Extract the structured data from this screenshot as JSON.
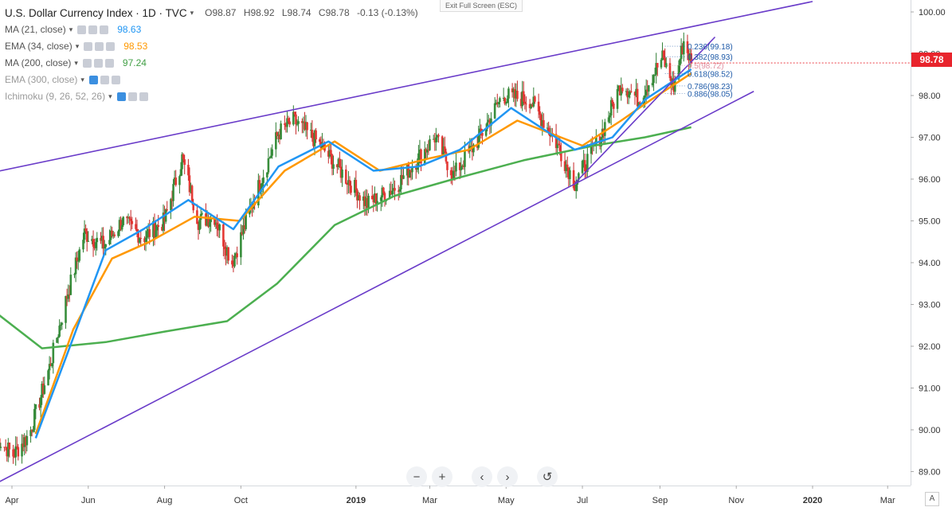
{
  "header": {
    "title": "U.S. Dollar Currency Index · 1D · TVC",
    "ohlc": {
      "open": "O98.87",
      "high": "H98.92",
      "low": "L98.74",
      "close": "C98.78",
      "change": "-0.13 (-0.13%)"
    }
  },
  "exit_fullscreen": "Exit Full Screen (ESC)",
  "indicators": [
    {
      "name": "MA (21, close)",
      "value": "98.63",
      "color": "#2196f3"
    },
    {
      "name": "EMA (34, close)",
      "value": "98.53",
      "color": "#ff9800"
    },
    {
      "name": "MA (200, close)",
      "value": "97.24",
      "color": "#4caf50"
    },
    {
      "name": "EMA (300, close)",
      "value": "",
      "color": "#999999"
    },
    {
      "name": "Ichimoku (9, 26, 52, 26)",
      "value": "",
      "color": "#999999"
    }
  ],
  "price_badge": "98.78",
  "colors": {
    "up": "#26a69a",
    "down": "#ef5350",
    "accent": "#6a3cc9",
    "badge": "#e8242c"
  },
  "controls": {
    "zoom_out": "−",
    "zoom_in": "+",
    "scroll_left": "‹",
    "scroll_right": "›",
    "reset": "↺"
  },
  "corner_label": "A",
  "chart_data": {
    "type": "candlestick",
    "title": "U.S. Dollar Currency Index",
    "y_ticks": [
      "100.00",
      "99.00",
      "98.00",
      "97.00",
      "96.00",
      "95.00",
      "94.00",
      "93.00",
      "92.00",
      "91.00",
      "90.00",
      "89.00"
    ],
    "y_range": [
      88.6,
      100.3
    ],
    "x_ticks": [
      "Apr",
      "Jun",
      "Aug",
      "Oct",
      "2019",
      "Mar",
      "May",
      "Jul",
      "Sep",
      "Nov",
      "2020",
      "Mar"
    ],
    "x_tick_dates": [
      "2018-04-01",
      "2018-06-01",
      "2018-08-01",
      "2018-10-01",
      "2019-01-01",
      "2019-03-01",
      "2019-05-01",
      "2019-07-01",
      "2019-09-01",
      "2019-11-01",
      "2020-01-01",
      "2020-03-01"
    ],
    "anchors": [
      {
        "date": "2018-03-20",
        "close": 89.8
      },
      {
        "date": "2018-04-02",
        "close": 89.4
      },
      {
        "date": "2018-04-15",
        "close": 89.9
      },
      {
        "date": "2018-05-01",
        "close": 91.5
      },
      {
        "date": "2018-05-15",
        "close": 93.2
      },
      {
        "date": "2018-05-29",
        "close": 94.7
      },
      {
        "date": "2018-06-14",
        "close": 94.4
      },
      {
        "date": "2018-06-28",
        "close": 95.0
      },
      {
        "date": "2018-07-15",
        "close": 94.6
      },
      {
        "date": "2018-08-01",
        "close": 95.0
      },
      {
        "date": "2018-08-15",
        "close": 96.5
      },
      {
        "date": "2018-08-28",
        "close": 95.0
      },
      {
        "date": "2018-09-10",
        "close": 95.1
      },
      {
        "date": "2018-09-24",
        "close": 94.0
      },
      {
        "date": "2018-10-10",
        "close": 95.4
      },
      {
        "date": "2018-10-31",
        "close": 97.1
      },
      {
        "date": "2018-11-12",
        "close": 97.4
      },
      {
        "date": "2018-12-01",
        "close": 96.9
      },
      {
        "date": "2019-01-10",
        "close": 95.4
      },
      {
        "date": "2019-02-01",
        "close": 95.8
      },
      {
        "date": "2019-03-05",
        "close": 97.0
      },
      {
        "date": "2019-03-20",
        "close": 96.1
      },
      {
        "date": "2019-04-10",
        "close": 97.0
      },
      {
        "date": "2019-04-28",
        "close": 98.0
      },
      {
        "date": "2019-05-20",
        "close": 97.9
      },
      {
        "date": "2019-06-08",
        "close": 97.0
      },
      {
        "date": "2019-06-25",
        "close": 95.9
      },
      {
        "date": "2019-07-15",
        "close": 97.0
      },
      {
        "date": "2019-08-01",
        "close": 98.3
      },
      {
        "date": "2019-08-15",
        "close": 97.9
      },
      {
        "date": "2019-09-03",
        "close": 98.9
      },
      {
        "date": "2019-09-12",
        "close": 98.2
      },
      {
        "date": "2019-09-20",
        "close": 99.3
      },
      {
        "date": "2019-09-26",
        "close": 98.8
      }
    ],
    "ma21": [
      {
        "date": "2018-04-20",
        "value": 89.8
      },
      {
        "date": "2018-05-15",
        "value": 91.8
      },
      {
        "date": "2018-06-15",
        "value": 94.3
      },
      {
        "date": "2018-07-15",
        "value": 94.8
      },
      {
        "date": "2018-08-20",
        "value": 95.5
      },
      {
        "date": "2018-09-25",
        "value": 94.8
      },
      {
        "date": "2018-10-31",
        "value": 96.3
      },
      {
        "date": "2018-12-10",
        "value": 96.9
      },
      {
        "date": "2019-01-15",
        "value": 96.2
      },
      {
        "date": "2019-02-20",
        "value": 96.3
      },
      {
        "date": "2019-03-25",
        "value": 96.7
      },
      {
        "date": "2019-05-05",
        "value": 97.7
      },
      {
        "date": "2019-06-25",
        "value": 96.7
      },
      {
        "date": "2019-07-25",
        "value": 97.0
      },
      {
        "date": "2019-08-20",
        "value": 97.9
      },
      {
        "date": "2019-09-26",
        "value": 98.63
      }
    ],
    "ema34": [
      {
        "date": "2018-04-20",
        "value": 89.9
      },
      {
        "date": "2018-05-20",
        "value": 92.4
      },
      {
        "date": "2018-06-20",
        "value": 94.1
      },
      {
        "date": "2018-07-20",
        "value": 94.5
      },
      {
        "date": "2018-08-25",
        "value": 95.1
      },
      {
        "date": "2018-09-30",
        "value": 95.0
      },
      {
        "date": "2018-11-05",
        "value": 96.2
      },
      {
        "date": "2018-12-15",
        "value": 96.9
      },
      {
        "date": "2019-01-20",
        "value": 96.2
      },
      {
        "date": "2019-03-01",
        "value": 96.5
      },
      {
        "date": "2019-04-01",
        "value": 96.7
      },
      {
        "date": "2019-05-10",
        "value": 97.4
      },
      {
        "date": "2019-07-01",
        "value": 96.8
      },
      {
        "date": "2019-08-01",
        "value": 97.4
      },
      {
        "date": "2019-08-25",
        "value": 97.9
      },
      {
        "date": "2019-09-26",
        "value": 98.53
      }
    ],
    "ma200": [
      {
        "date": "2018-03-15",
        "value": 92.9
      },
      {
        "date": "2018-04-25",
        "value": 91.95
      },
      {
        "date": "2018-06-15",
        "value": 92.1
      },
      {
        "date": "2018-08-01",
        "value": 92.35
      },
      {
        "date": "2018-09-20",
        "value": 92.6
      },
      {
        "date": "2018-10-30",
        "value": 93.5
      },
      {
        "date": "2018-12-15",
        "value": 94.9
      },
      {
        "date": "2019-02-01",
        "value": 95.6
      },
      {
        "date": "2019-03-20",
        "value": 96.0
      },
      {
        "date": "2019-05-15",
        "value": 96.45
      },
      {
        "date": "2019-07-10",
        "value": 96.8
      },
      {
        "date": "2019-08-20",
        "value": 97.0
      },
      {
        "date": "2019-09-26",
        "value": 97.24
      }
    ],
    "trendlines": [
      {
        "from": {
          "date": "2018-03-15",
          "value": 96.15
        },
        "to": {
          "date": "2020-01-01",
          "value": 100.25
        }
      },
      {
        "from": {
          "date": "2018-03-15",
          "value": 88.65
        },
        "to": {
          "date": "2019-11-15",
          "value": 98.1
        }
      },
      {
        "from": {
          "date": "2019-06-25",
          "value": 95.9
        },
        "to": {
          "date": "2019-10-15",
          "value": 99.4
        }
      }
    ],
    "fibonacci": [
      {
        "label": "0.236(99.18)",
        "value": 99.18,
        "color": "#1e5aa8"
      },
      {
        "label": "0.382(98.93)",
        "value": 98.93,
        "color": "#1e5aa8"
      },
      {
        "label": "0.5(98.72)",
        "value": 98.72,
        "color": "#e08fa0"
      },
      {
        "label": "0.618(98.52)",
        "value": 98.52,
        "color": "#1e5aa8"
      },
      {
        "label": "0.786(98.23)",
        "value": 98.23,
        "color": "#1e5aa8"
      },
      {
        "label": "0.886(98.05)",
        "value": 98.05,
        "color": "#1e5aa8"
      }
    ],
    "last_price": 98.78
  }
}
